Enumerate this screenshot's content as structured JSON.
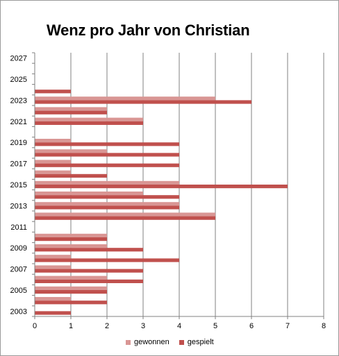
{
  "chart_data": {
    "type": "bar",
    "orientation": "horizontal",
    "title": "Wenz pro Jahr von Christian",
    "xlabel": "",
    "ylabel": "",
    "xlim": [
      0,
      8
    ],
    "x_ticks": [
      "0",
      "1",
      "2",
      "3",
      "4",
      "5",
      "6",
      "7",
      "8"
    ],
    "categories": [
      2003,
      2004,
      2005,
      2006,
      2007,
      2008,
      2009,
      2010,
      2011,
      2012,
      2013,
      2014,
      2015,
      2016,
      2017,
      2018,
      2019,
      2020,
      2021,
      2022,
      2023,
      2024,
      2025,
      2026,
      2027
    ],
    "category_labels": [
      "2003",
      "",
      "2005",
      "",
      "2007",
      "",
      "2009",
      "",
      "2011",
      "",
      "2013",
      "",
      "2015",
      "",
      "2017",
      "",
      "2019",
      "",
      "2021",
      "",
      "2023",
      "",
      "2025",
      "",
      "2027"
    ],
    "series": [
      {
        "name": "gewonnen",
        "color": "#d99694",
        "values": [
          0,
          1,
          2,
          2,
          1,
          1,
          2,
          2,
          0,
          5,
          4,
          3,
          4,
          1,
          1,
          2,
          1,
          0,
          3,
          2,
          5,
          0,
          0,
          0,
          0
        ]
      },
      {
        "name": "gespielt",
        "color": "#c0504d",
        "values": [
          1,
          2,
          2,
          3,
          3,
          4,
          3,
          2,
          0,
          5,
          4,
          4,
          7,
          2,
          4,
          4,
          4,
          0,
          3,
          2,
          6,
          1,
          0,
          0,
          0
        ]
      }
    ],
    "grid": true,
    "legend_position": "bottom"
  }
}
